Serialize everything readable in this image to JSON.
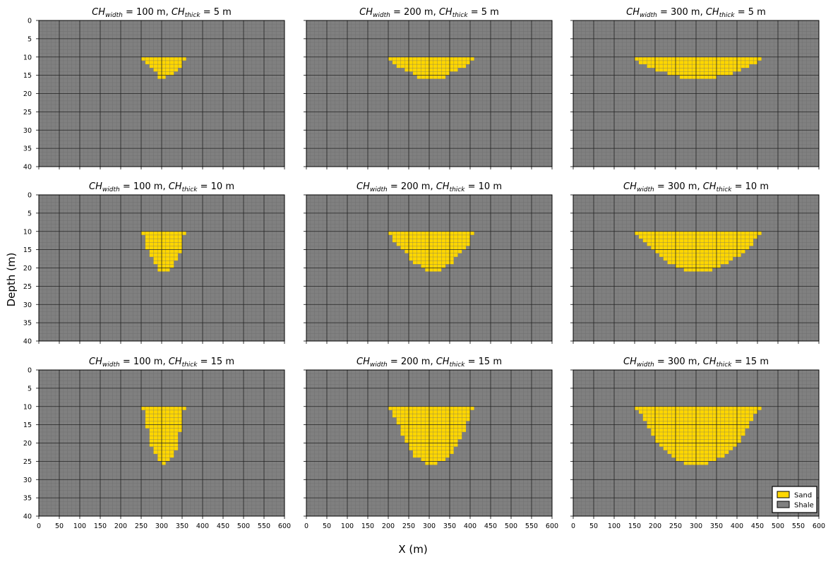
{
  "xlabel": "X (m)",
  "ylabel": "Depth (m)",
  "x_ticks": [
    "0",
    "50",
    "100",
    "150",
    "200",
    "250",
    "300",
    "350",
    "400",
    "450",
    "500",
    "550",
    "600"
  ],
  "y_ticks": [
    "0",
    "5",
    "10",
    "15",
    "20",
    "25",
    "30",
    "35",
    "40"
  ],
  "legend": {
    "placement": "lower-right",
    "items": [
      {
        "label": "Sand",
        "color": "#FFD700"
      },
      {
        "label": "Shale",
        "color": "#808080"
      }
    ]
  },
  "colors": {
    "sand": "#FFD700",
    "shale": "#808080",
    "cell_grid": "#6a6a6a",
    "major_grid": "#222222"
  },
  "chart_data": {
    "type": "heatmap",
    "description_units": {
      "x": "m",
      "depth": "m"
    },
    "xlim": [
      0,
      600
    ],
    "ylim": [
      0,
      40
    ],
    "y_inverted": true,
    "cell_size": {
      "x": 10,
      "depth": 1
    },
    "grid": true,
    "panels": [
      {
        "title": {
          "base1": "CH",
          "sub1": "width",
          "mid": " = 100 m, ",
          "base2": "CH",
          "sub2": "thick",
          "end": " = 5 m"
        },
        "width_m": 100,
        "thick_m": 5,
        "sand_rows": [
          {
            "depth": 10,
            "x_start": 250,
            "x_end": 360
          },
          {
            "depth": 11,
            "x_start": 260,
            "x_end": 350
          },
          {
            "depth": 12,
            "x_start": 270,
            "x_end": 350
          },
          {
            "depth": 13,
            "x_start": 280,
            "x_end": 340
          },
          {
            "depth": 14,
            "x_start": 290,
            "x_end": 330
          },
          {
            "depth": 15,
            "x_start": 290,
            "x_end": 310
          }
        ]
      },
      {
        "title": {
          "base1": "CH",
          "sub1": "width",
          "mid": " = 200 m, ",
          "base2": "CH",
          "sub2": "thick",
          "end": " = 5 m"
        },
        "width_m": 200,
        "thick_m": 5,
        "sand_rows": [
          {
            "depth": 10,
            "x_start": 200,
            "x_end": 410
          },
          {
            "depth": 11,
            "x_start": 210,
            "x_end": 400
          },
          {
            "depth": 12,
            "x_start": 220,
            "x_end": 390
          },
          {
            "depth": 13,
            "x_start": 240,
            "x_end": 370
          },
          {
            "depth": 14,
            "x_start": 260,
            "x_end": 350
          },
          {
            "depth": 15,
            "x_start": 270,
            "x_end": 340
          }
        ]
      },
      {
        "title": {
          "base1": "CH",
          "sub1": "width",
          "mid": " = 300 m, ",
          "base2": "CH",
          "sub2": "thick",
          "end": " = 5 m"
        },
        "width_m": 300,
        "thick_m": 5,
        "sand_rows": [
          {
            "depth": 10,
            "x_start": 150,
            "x_end": 460
          },
          {
            "depth": 11,
            "x_start": 160,
            "x_end": 450
          },
          {
            "depth": 12,
            "x_start": 180,
            "x_end": 430
          },
          {
            "depth": 13,
            "x_start": 200,
            "x_end": 410
          },
          {
            "depth": 14,
            "x_start": 230,
            "x_end": 390
          },
          {
            "depth": 15,
            "x_start": 260,
            "x_end": 350
          }
        ]
      },
      {
        "title": {
          "base1": "CH",
          "sub1": "width",
          "mid": " = 100 m, ",
          "base2": "CH",
          "sub2": "thick",
          "end": " = 10 m"
        },
        "width_m": 100,
        "thick_m": 10,
        "sand_rows": [
          {
            "depth": 10,
            "x_start": 250,
            "x_end": 360
          },
          {
            "depth": 11,
            "x_start": 260,
            "x_end": 350
          },
          {
            "depth": 12,
            "x_start": 260,
            "x_end": 350
          },
          {
            "depth": 13,
            "x_start": 260,
            "x_end": 350
          },
          {
            "depth": 14,
            "x_start": 260,
            "x_end": 350
          },
          {
            "depth": 15,
            "x_start": 270,
            "x_end": 350
          },
          {
            "depth": 16,
            "x_start": 270,
            "x_end": 340
          },
          {
            "depth": 17,
            "x_start": 280,
            "x_end": 340
          },
          {
            "depth": 18,
            "x_start": 280,
            "x_end": 330
          },
          {
            "depth": 19,
            "x_start": 290,
            "x_end": 330
          },
          {
            "depth": 20,
            "x_start": 290,
            "x_end": 320
          }
        ]
      },
      {
        "title": {
          "base1": "CH",
          "sub1": "width",
          "mid": " = 200 m, ",
          "base2": "CH",
          "sub2": "thick",
          "end": " = 10 m"
        },
        "width_m": 200,
        "thick_m": 10,
        "sand_rows": [
          {
            "depth": 10,
            "x_start": 200,
            "x_end": 410
          },
          {
            "depth": 11,
            "x_start": 210,
            "x_end": 400
          },
          {
            "depth": 12,
            "x_start": 210,
            "x_end": 400
          },
          {
            "depth": 13,
            "x_start": 220,
            "x_end": 400
          },
          {
            "depth": 14,
            "x_start": 230,
            "x_end": 390
          },
          {
            "depth": 15,
            "x_start": 240,
            "x_end": 380
          },
          {
            "depth": 16,
            "x_start": 250,
            "x_end": 370
          },
          {
            "depth": 17,
            "x_start": 250,
            "x_end": 360
          },
          {
            "depth": 18,
            "x_start": 260,
            "x_end": 360
          },
          {
            "depth": 19,
            "x_start": 280,
            "x_end": 340
          },
          {
            "depth": 20,
            "x_start": 290,
            "x_end": 330
          }
        ]
      },
      {
        "title": {
          "base1": "CH",
          "sub1": "width",
          "mid": " = 300 m, ",
          "base2": "CH",
          "sub2": "thick",
          "end": " = 10 m"
        },
        "width_m": 300,
        "thick_m": 10,
        "sand_rows": [
          {
            "depth": 10,
            "x_start": 150,
            "x_end": 460
          },
          {
            "depth": 11,
            "x_start": 160,
            "x_end": 450
          },
          {
            "depth": 12,
            "x_start": 170,
            "x_end": 440
          },
          {
            "depth": 13,
            "x_start": 180,
            "x_end": 440
          },
          {
            "depth": 14,
            "x_start": 190,
            "x_end": 430
          },
          {
            "depth": 15,
            "x_start": 200,
            "x_end": 420
          },
          {
            "depth": 16,
            "x_start": 210,
            "x_end": 410
          },
          {
            "depth": 17,
            "x_start": 220,
            "x_end": 390
          },
          {
            "depth": 18,
            "x_start": 230,
            "x_end": 380
          },
          {
            "depth": 19,
            "x_start": 250,
            "x_end": 360
          },
          {
            "depth": 20,
            "x_start": 270,
            "x_end": 340
          }
        ]
      },
      {
        "title": {
          "base1": "CH",
          "sub1": "width",
          "mid": " = 100 m, ",
          "base2": "CH",
          "sub2": "thick",
          "end": " = 15 m"
        },
        "width_m": 100,
        "thick_m": 15,
        "sand_rows": [
          {
            "depth": 10,
            "x_start": 250,
            "x_end": 360
          },
          {
            "depth": 11,
            "x_start": 260,
            "x_end": 350
          },
          {
            "depth": 12,
            "x_start": 260,
            "x_end": 350
          },
          {
            "depth": 13,
            "x_start": 260,
            "x_end": 350
          },
          {
            "depth": 14,
            "x_start": 260,
            "x_end": 350
          },
          {
            "depth": 15,
            "x_start": 260,
            "x_end": 350
          },
          {
            "depth": 16,
            "x_start": 270,
            "x_end": 350
          },
          {
            "depth": 17,
            "x_start": 270,
            "x_end": 340
          },
          {
            "depth": 18,
            "x_start": 270,
            "x_end": 340
          },
          {
            "depth": 19,
            "x_start": 270,
            "x_end": 340
          },
          {
            "depth": 20,
            "x_start": 270,
            "x_end": 340
          },
          {
            "depth": 21,
            "x_start": 280,
            "x_end": 340
          },
          {
            "depth": 22,
            "x_start": 280,
            "x_end": 330
          },
          {
            "depth": 23,
            "x_start": 290,
            "x_end": 330
          },
          {
            "depth": 24,
            "x_start": 290,
            "x_end": 320
          },
          {
            "depth": 25,
            "x_start": 300,
            "x_end": 310
          }
        ]
      },
      {
        "title": {
          "base1": "CH",
          "sub1": "width",
          "mid": " = 200 m, ",
          "base2": "CH",
          "sub2": "thick",
          "end": " = 15 m"
        },
        "width_m": 200,
        "thick_m": 15,
        "sand_rows": [
          {
            "depth": 10,
            "x_start": 200,
            "x_end": 410
          },
          {
            "depth": 11,
            "x_start": 210,
            "x_end": 400
          },
          {
            "depth": 12,
            "x_start": 210,
            "x_end": 400
          },
          {
            "depth": 13,
            "x_start": 220,
            "x_end": 400
          },
          {
            "depth": 14,
            "x_start": 220,
            "x_end": 390
          },
          {
            "depth": 15,
            "x_start": 230,
            "x_end": 390
          },
          {
            "depth": 16,
            "x_start": 230,
            "x_end": 390
          },
          {
            "depth": 17,
            "x_start": 230,
            "x_end": 380
          },
          {
            "depth": 18,
            "x_start": 240,
            "x_end": 380
          },
          {
            "depth": 19,
            "x_start": 240,
            "x_end": 370
          },
          {
            "depth": 20,
            "x_start": 250,
            "x_end": 370
          },
          {
            "depth": 21,
            "x_start": 250,
            "x_end": 360
          },
          {
            "depth": 22,
            "x_start": 260,
            "x_end": 360
          },
          {
            "depth": 23,
            "x_start": 260,
            "x_end": 350
          },
          {
            "depth": 24,
            "x_start": 280,
            "x_end": 340
          },
          {
            "depth": 25,
            "x_start": 290,
            "x_end": 320
          }
        ]
      },
      {
        "title": {
          "base1": "CH",
          "sub1": "width",
          "mid": " = 300 m, ",
          "base2": "CH",
          "sub2": "thick",
          "end": " = 15 m"
        },
        "width_m": 300,
        "thick_m": 15,
        "sand_rows": [
          {
            "depth": 10,
            "x_start": 150,
            "x_end": 460
          },
          {
            "depth": 11,
            "x_start": 160,
            "x_end": 450
          },
          {
            "depth": 12,
            "x_start": 170,
            "x_end": 440
          },
          {
            "depth": 13,
            "x_start": 170,
            "x_end": 440
          },
          {
            "depth": 14,
            "x_start": 180,
            "x_end": 430
          },
          {
            "depth": 15,
            "x_start": 180,
            "x_end": 430
          },
          {
            "depth": 16,
            "x_start": 190,
            "x_end": 420
          },
          {
            "depth": 17,
            "x_start": 190,
            "x_end": 420
          },
          {
            "depth": 18,
            "x_start": 200,
            "x_end": 410
          },
          {
            "depth": 19,
            "x_start": 200,
            "x_end": 410
          },
          {
            "depth": 20,
            "x_start": 210,
            "x_end": 400
          },
          {
            "depth": 21,
            "x_start": 220,
            "x_end": 390
          },
          {
            "depth": 22,
            "x_start": 230,
            "x_end": 380
          },
          {
            "depth": 23,
            "x_start": 240,
            "x_end": 370
          },
          {
            "depth": 24,
            "x_start": 250,
            "x_end": 350
          },
          {
            "depth": 25,
            "x_start": 270,
            "x_end": 330
          }
        ]
      }
    ]
  }
}
